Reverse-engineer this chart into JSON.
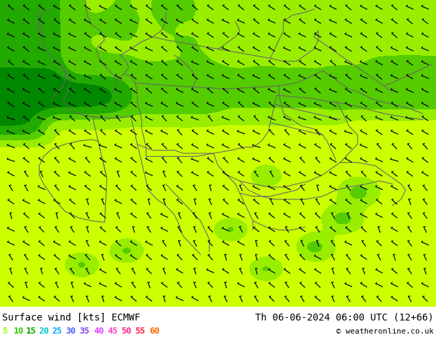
{
  "title_left": "Surface wind [kts] ECMWF",
  "title_right": "Th 06-06-2024 06:00 UTC (12+66)",
  "copyright": "© weatheronline.co.uk",
  "legend_values": [
    "5",
    "10",
    "15",
    "20",
    "25",
    "30",
    "35",
    "40",
    "45",
    "50",
    "55",
    "60"
  ],
  "legend_colors": [
    "#99ff00",
    "#00dd00",
    "#00bb00",
    "#00dddd",
    "#00aaff",
    "#4444ff",
    "#8844ff",
    "#dd44ff",
    "#ff44dd",
    "#ff2288",
    "#ff2222",
    "#ff6600"
  ],
  "bg_color": "#ffffff",
  "title_fontsize": 10,
  "legend_fontsize": 9,
  "fig_width": 6.34,
  "fig_height": 4.9,
  "colormap_bounds": [
    0,
    5,
    10,
    15,
    20,
    25,
    30,
    35,
    40,
    45,
    50,
    55,
    60,
    100
  ],
  "colormap_colors": [
    "#ffff00",
    "#ddff00",
    "#aaff00",
    "#66dd00",
    "#33bb00",
    "#009900",
    "#007777",
    "#0099ff",
    "#0055ff",
    "#cc44ff",
    "#ff22aa",
    "#ff2222",
    "#ff6600"
  ],
  "border_color": "#666666",
  "barb_color": "#000000"
}
